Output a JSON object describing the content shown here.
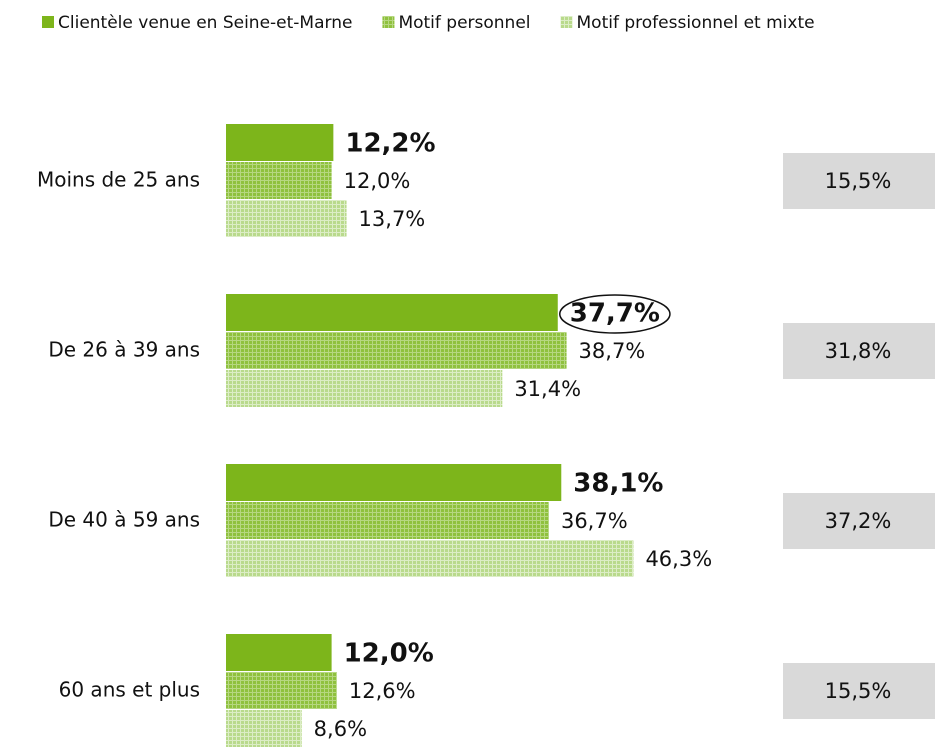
{
  "chart_data": {
    "type": "hbar",
    "categories": [
      "Moins de 25 ans",
      "De 26 à 39 ans",
      "De 40 à 59 ans",
      "60 ans et plus"
    ],
    "series": [
      {
        "name": "Clientèle venue en Seine-et-Marne",
        "color": "#7db51b",
        "pattern": "solid",
        "values": [
          12.2,
          37.7,
          38.1,
          12.0
        ],
        "value_labels": [
          "12,2%",
          "37,7%",
          "38,1%",
          "12,0%"
        ]
      },
      {
        "name": "Motif personnel",
        "color": "#8fc13e",
        "pattern": "grid",
        "values": [
          12.0,
          38.7,
          36.7,
          12.6
        ],
        "value_labels": [
          "12,0%",
          "38,7%",
          "36,7%",
          "12,6%"
        ]
      },
      {
        "name": "Motif professionnel et mixte",
        "color": "#b9da8c",
        "pattern": "grid",
        "values": [
          13.7,
          31.4,
          46.3,
          8.6
        ],
        "value_labels": [
          "13,7%",
          "31,4%",
          "46,3%",
          "8,6%"
        ]
      }
    ],
    "side_values": [
      15.5,
      31.8,
      37.2,
      15.5
    ],
    "side_value_labels": [
      "15,5%",
      "31,8%",
      "37,2%",
      "15,5%"
    ],
    "highlights": [
      {
        "series": 2,
        "index": 2,
        "color": "#e0301e"
      }
    ],
    "circled": [
      {
        "series": 0,
        "index": 1
      }
    ]
  }
}
